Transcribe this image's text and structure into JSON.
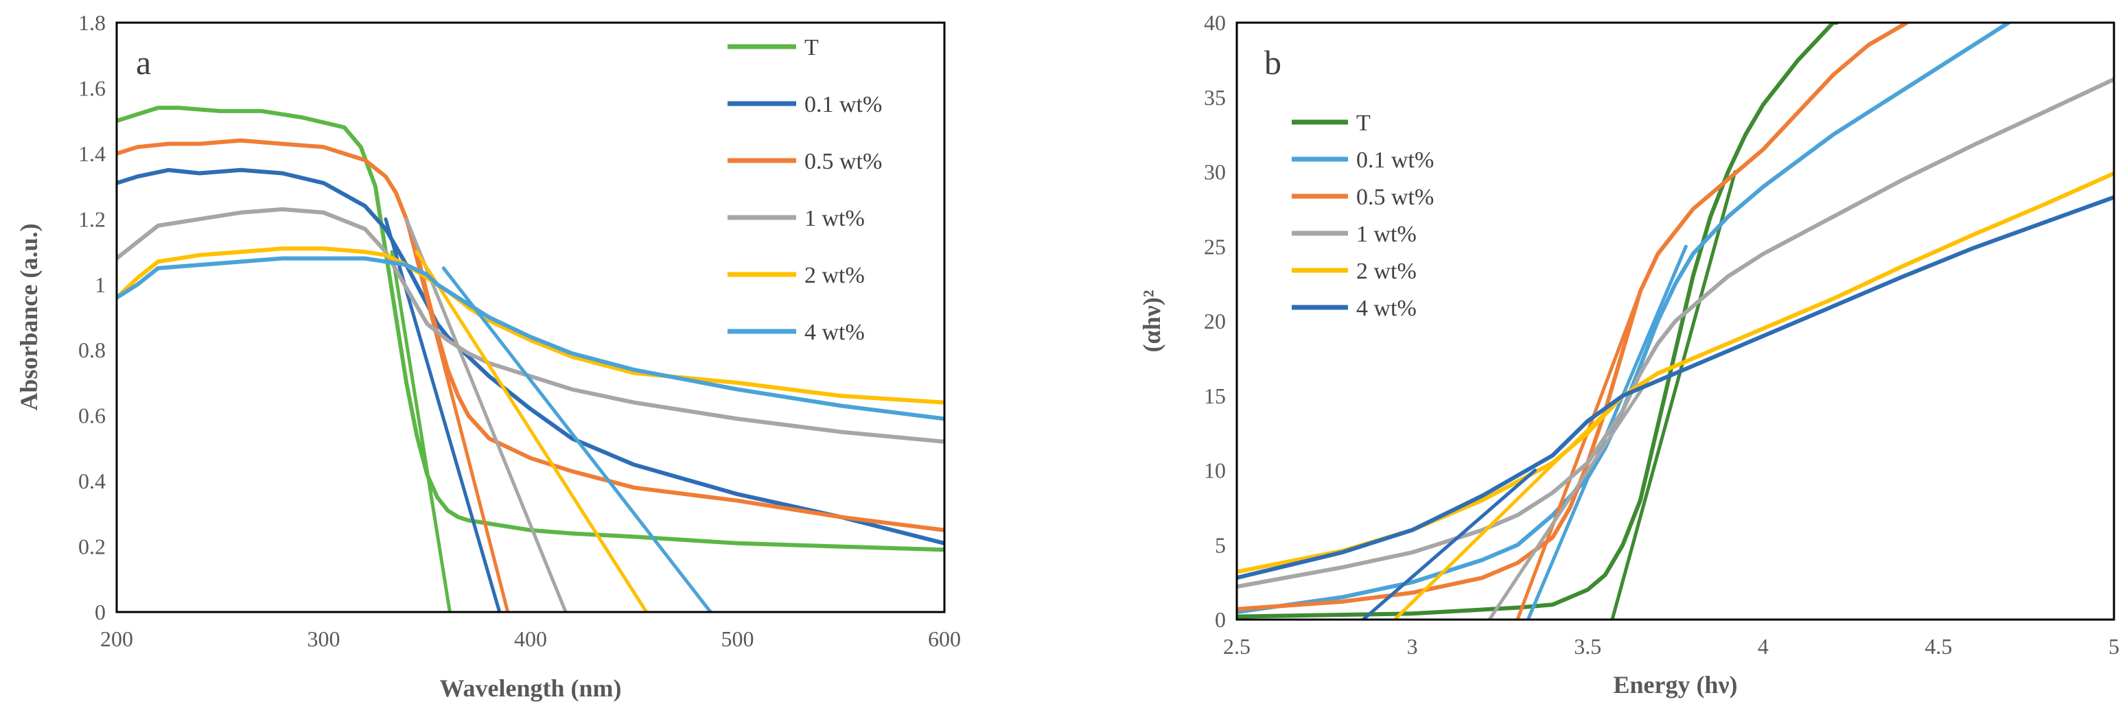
{
  "chart_data": [
    {
      "type": "line",
      "panel_label": "a",
      "xlabel": "Wavelength (nm)",
      "ylabel": "Absorbance (a.u.)",
      "xlim": [
        200,
        600
      ],
      "ylim": [
        0,
        1.8
      ],
      "x_ticks": [
        "200",
        "300",
        "400",
        "500",
        "600"
      ],
      "y_ticks": [
        "0",
        "0.2",
        "0.4",
        "0.6",
        "0.8",
        "1",
        "1.2",
        "1.4",
        "1.6",
        "1.8"
      ],
      "grid": false,
      "legend_position": "top-right",
      "series": [
        {
          "name": "T",
          "color": "#5cb646",
          "x": [
            200,
            210,
            220,
            230,
            250,
            270,
            290,
            310,
            318,
            325,
            330,
            335,
            340,
            345,
            350,
            355,
            360,
            365,
            370,
            380,
            400,
            420,
            450,
            500,
            550,
            600
          ],
          "y": [
            1.5,
            1.52,
            1.54,
            1.54,
            1.53,
            1.53,
            1.51,
            1.48,
            1.42,
            1.3,
            1.1,
            0.9,
            0.7,
            0.54,
            0.42,
            0.35,
            0.31,
            0.29,
            0.28,
            0.27,
            0.25,
            0.24,
            0.23,
            0.21,
            0.2,
            0.19
          ],
          "fit": {
            "x": [
              333,
              361
            ],
            "y": [
              1.1,
              0
            ]
          }
        },
        {
          "name": "0.1 wt%",
          "color": "#2e6db5",
          "x": [
            200,
            210,
            225,
            240,
            260,
            280,
            300,
            320,
            330,
            340,
            345,
            350,
            355,
            360,
            370,
            380,
            400,
            420,
            450,
            500,
            550,
            600
          ],
          "y": [
            1.31,
            1.33,
            1.35,
            1.34,
            1.35,
            1.34,
            1.31,
            1.24,
            1.17,
            1.06,
            1.0,
            0.94,
            0.88,
            0.84,
            0.78,
            0.72,
            0.62,
            0.53,
            0.45,
            0.36,
            0.29,
            0.21
          ],
          "fit": {
            "x": [
              330,
              385
            ],
            "y": [
              1.2,
              0
            ]
          }
        },
        {
          "name": "0.5 wt%",
          "color": "#ef7d36",
          "x": [
            200,
            210,
            225,
            240,
            260,
            280,
            300,
            320,
            330,
            335,
            340,
            345,
            350,
            355,
            360,
            365,
            370,
            380,
            400,
            420,
            450,
            500,
            550,
            600
          ],
          "y": [
            1.4,
            1.42,
            1.43,
            1.43,
            1.44,
            1.43,
            1.42,
            1.38,
            1.33,
            1.28,
            1.2,
            1.1,
            0.97,
            0.85,
            0.74,
            0.66,
            0.6,
            0.53,
            0.47,
            0.43,
            0.38,
            0.34,
            0.29,
            0.25
          ],
          "fit": {
            "x": [
              340,
              389
            ],
            "y": [
              1.2,
              0
            ]
          }
        },
        {
          "name": "1 wt%",
          "color": "#a6a6a6",
          "x": [
            200,
            210,
            220,
            230,
            240,
            260,
            280,
            300,
            320,
            330,
            340,
            350,
            360,
            370,
            380,
            400,
            420,
            450,
            500,
            550,
            600
          ],
          "y": [
            1.08,
            1.13,
            1.18,
            1.19,
            1.2,
            1.22,
            1.23,
            1.22,
            1.17,
            1.1,
            0.99,
            0.88,
            0.83,
            0.79,
            0.76,
            0.72,
            0.68,
            0.64,
            0.59,
            0.55,
            0.52
          ],
          "fit": {
            "x": [
              340,
              417
            ],
            "y": [
              1.2,
              0
            ]
          }
        },
        {
          "name": "2 wt%",
          "color": "#ffc000",
          "x": [
            200,
            210,
            220,
            240,
            260,
            280,
            300,
            320,
            330,
            340,
            350,
            360,
            370,
            380,
            400,
            420,
            450,
            500,
            550,
            600
          ],
          "y": [
            0.96,
            1.02,
            1.07,
            1.09,
            1.1,
            1.11,
            1.11,
            1.1,
            1.09,
            1.06,
            1.02,
            0.98,
            0.93,
            0.89,
            0.83,
            0.78,
            0.73,
            0.7,
            0.66,
            0.64
          ],
          "fit": {
            "x": [
              345,
              456
            ],
            "y": [
              1.1,
              0
            ]
          }
        },
        {
          "name": "4 wt%",
          "color": "#4aa3d8",
          "x": [
            200,
            210,
            220,
            240,
            260,
            280,
            300,
            320,
            330,
            340,
            350,
            355,
            360,
            370,
            380,
            400,
            420,
            450,
            500,
            550,
            600
          ],
          "y": [
            0.96,
            1.0,
            1.05,
            1.06,
            1.07,
            1.08,
            1.08,
            1.08,
            1.07,
            1.06,
            1.03,
            1.0,
            0.98,
            0.94,
            0.9,
            0.84,
            0.79,
            0.74,
            0.68,
            0.63,
            0.59
          ],
          "fit": {
            "x": [
              358,
              487
            ],
            "y": [
              1.05,
              0
            ]
          }
        }
      ]
    },
    {
      "type": "line",
      "panel_label": "b",
      "xlabel": "Energy (hν)",
      "ylabel": "(αhν)²",
      "xlim": [
        2.5,
        5
      ],
      "ylim": [
        0,
        40
      ],
      "x_ticks": [
        "2.5",
        "3",
        "3.5",
        "4",
        "4.5",
        "5"
      ],
      "y_ticks": [
        "0",
        "5",
        "10",
        "15",
        "20",
        "25",
        "30",
        "35",
        "40"
      ],
      "grid": false,
      "legend_position": "top-left",
      "series": [
        {
          "name": "T",
          "color": "#3e8a31",
          "x": [
            2.5,
            3.0,
            3.3,
            3.4,
            3.5,
            3.55,
            3.6,
            3.65,
            3.7,
            3.75,
            3.8,
            3.85,
            3.9,
            3.95,
            4.0,
            4.1,
            4.2,
            4.21
          ],
          "y": [
            0.2,
            0.4,
            0.8,
            1.0,
            2.0,
            3.0,
            5.0,
            8.0,
            13.0,
            18.0,
            23.0,
            27.0,
            30.0,
            32.5,
            34.5,
            37.5,
            40.0,
            40.0
          ],
          "fit": {
            "x": [
              3.57,
              3.92
            ],
            "y": [
              0,
              30
            ]
          }
        },
        {
          "name": "0.1 wt%",
          "color": "#4aa3d8",
          "x": [
            2.5,
            2.8,
            3.0,
            3.2,
            3.3,
            3.4,
            3.5,
            3.55,
            3.6,
            3.65,
            3.7,
            3.75,
            3.8,
            3.9,
            4.0,
            4.2,
            4.4,
            4.6,
            4.7
          ],
          "y": [
            0.5,
            1.5,
            2.5,
            4.0,
            5.0,
            7.0,
            9.5,
            11.5,
            14.0,
            17.0,
            20.0,
            22.5,
            24.5,
            27.0,
            29.0,
            32.5,
            35.5,
            38.5,
            40.0
          ],
          "fit": {
            "x": [
              3.33,
              3.78
            ],
            "y": [
              0,
              25
            ]
          }
        },
        {
          "name": "0.5 wt%",
          "color": "#ef7d36",
          "x": [
            2.5,
            2.8,
            3.0,
            3.2,
            3.3,
            3.4,
            3.45,
            3.5,
            3.55,
            3.6,
            3.65,
            3.7,
            3.75,
            3.8,
            3.9,
            4.0,
            4.1,
            4.2,
            4.3,
            4.41
          ],
          "y": [
            0.7,
            1.2,
            1.8,
            2.8,
            3.8,
            5.5,
            7.5,
            10.5,
            14.0,
            18.0,
            22.0,
            24.5,
            26.0,
            27.5,
            29.5,
            31.5,
            34.0,
            36.5,
            38.5,
            40.0
          ],
          "fit": {
            "x": [
              3.3,
              3.65
            ],
            "y": [
              0,
              22
            ]
          }
        },
        {
          "name": "1 wt%",
          "color": "#a6a6a6",
          "x": [
            2.5,
            2.8,
            3.0,
            3.2,
            3.3,
            3.4,
            3.5,
            3.6,
            3.65,
            3.7,
            3.75,
            3.8,
            3.85,
            3.9,
            4.0,
            4.2,
            4.4,
            4.6,
            4.8,
            5.0
          ],
          "y": [
            2.2,
            3.5,
            4.5,
            6.0,
            7.0,
            8.5,
            10.5,
            14.0,
            16.5,
            18.5,
            20.0,
            21.0,
            22.0,
            23.0,
            24.5,
            27.0,
            29.5,
            31.8,
            34.0,
            36.2
          ],
          "fit": {
            "x": [
              3.22,
              3.67
            ],
            "y": [
              0,
              16
            ]
          }
        },
        {
          "name": "2 wt%",
          "color": "#ffc000",
          "x": [
            2.5,
            2.8,
            3.0,
            3.2,
            3.4,
            3.5,
            3.6,
            3.7,
            3.8,
            3.9,
            4.0,
            4.2,
            4.4,
            4.6,
            4.8,
            5.0
          ],
          "y": [
            3.2,
            4.6,
            6.0,
            8.0,
            10.5,
            12.5,
            15.0,
            16.5,
            17.5,
            18.5,
            19.5,
            21.5,
            23.7,
            25.8,
            27.8,
            29.9
          ],
          "fit": {
            "x": [
              2.95,
              3.6
            ],
            "y": [
              0,
              15
            ]
          }
        },
        {
          "name": "4 wt%",
          "color": "#2e6db5",
          "x": [
            2.5,
            2.8,
            3.0,
            3.2,
            3.4,
            3.5,
            3.6,
            3.7,
            3.8,
            3.9,
            4.0,
            4.2,
            4.4,
            4.6,
            4.8,
            5.0
          ],
          "y": [
            2.8,
            4.5,
            6.0,
            8.3,
            11.0,
            13.3,
            15.0,
            16.0,
            17.0,
            18.0,
            19.0,
            21.0,
            23.0,
            24.9,
            26.6,
            28.3
          ],
          "fit": {
            "x": [
              2.86,
              3.35
            ],
            "y": [
              0,
              10
            ]
          }
        }
      ]
    }
  ]
}
